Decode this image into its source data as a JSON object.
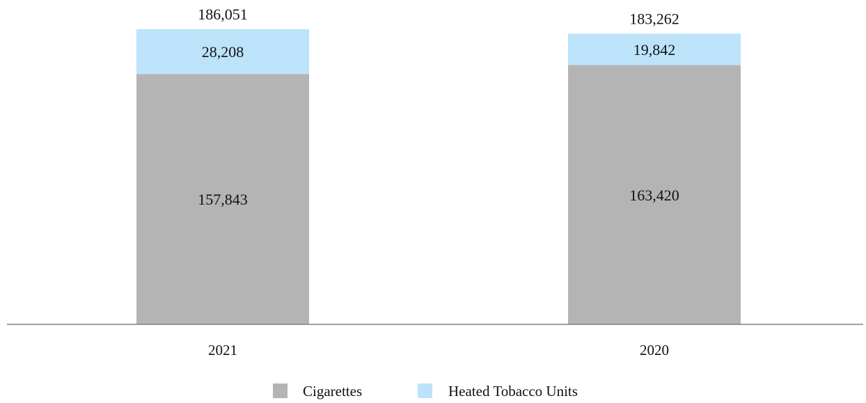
{
  "chart_data": {
    "type": "bar",
    "stacked": true,
    "categories": [
      "2021",
      "2020"
    ],
    "series": [
      {
        "name": "Cigarettes",
        "values": [
          157843,
          163420
        ],
        "labels": [
          "157,843",
          "163,420"
        ],
        "color": "#b4b4b4"
      },
      {
        "name": "Heated Tobacco Units",
        "values": [
          28208,
          19842
        ],
        "labels": [
          "28,208",
          "19,842"
        ],
        "color": "#bde3fb"
      }
    ],
    "totals": [
      186051,
      183262
    ],
    "total_labels": [
      "186,051",
      "183,262"
    ],
    "ylim": [
      0,
      200000
    ],
    "grid": false,
    "legend_position": "bottom-center",
    "title": "",
    "xlabel": "",
    "ylabel": "",
    "baseline_color": "#808080"
  }
}
